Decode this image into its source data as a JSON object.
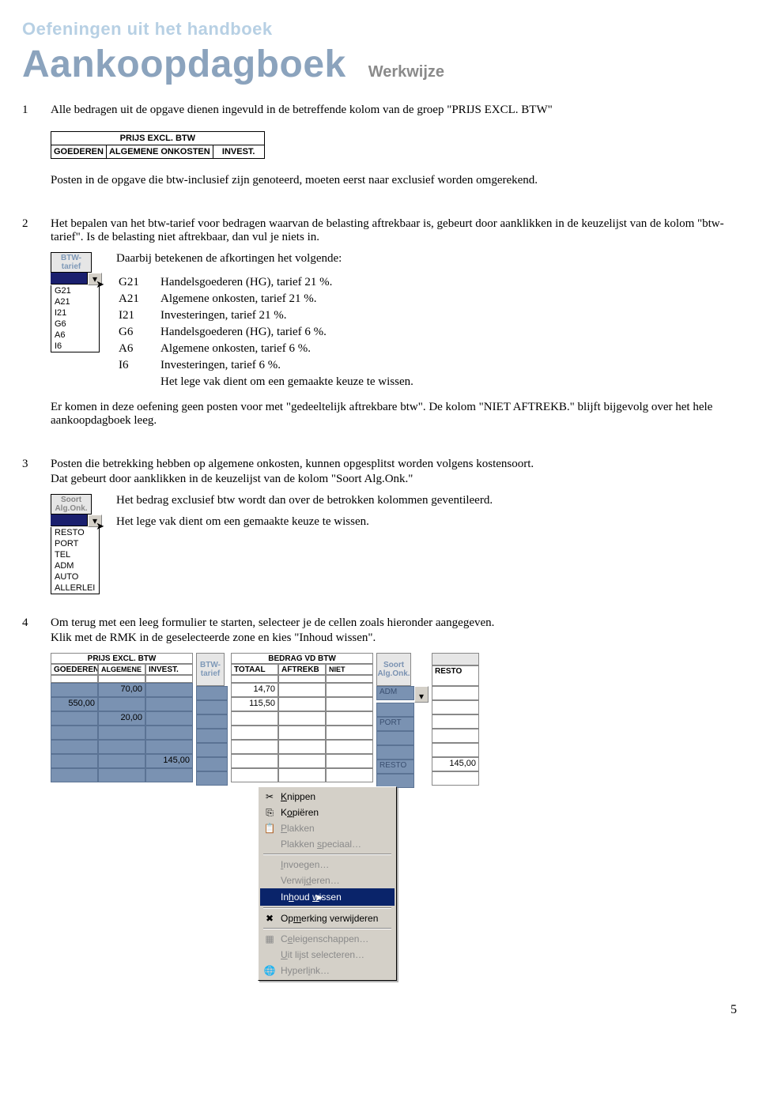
{
  "pre_title": "Oefeningen uit het handboek",
  "title": "Aankoopdagboek",
  "subtitle": "Werkwijze",
  "page_number": "5",
  "sec1": {
    "num": "1",
    "text": "Alle bedragen uit de opgave dienen ingevuld in de betreffende kolom van de groep \"PRIJS EXCL. BTW\"",
    "table_header": "PRIJS EXCL. BTW",
    "cols": [
      "GOEDEREN",
      "ALGEMENE ONKOSTEN",
      "INVEST."
    ],
    "follow": "Posten in de opgave die btw-inclusief zijn genoteerd, moeten eerst naar exclusief worden omgerekend."
  },
  "sec2": {
    "num": "2",
    "text": "Het bepalen van het btw-tarief voor bedragen waarvan de belasting aftrekbaar is, gebeurt door aanklikken in de keuzelijst van de kolom \"btw-tarief\". Is de belasting niet aftrekbaar, dan vul je niets in.",
    "dd_title": "BTW-tarief",
    "dd_items": [
      "G21",
      "A21",
      "I21",
      "G6",
      "A6",
      "I6"
    ],
    "def_intro": "Daarbij betekenen de afkortingen het volgende:",
    "defs": [
      {
        "code": "G21",
        "desc": "Handelsgoederen (HG), tarief  21 %."
      },
      {
        "code": "A21",
        "desc": "Algemene onkosten, tarief  21 %."
      },
      {
        "code": "I21",
        "desc": "Investeringen, tarief  21 %."
      },
      {
        "code": "G6",
        "desc": "Handelsgoederen (HG), tarief  6 %."
      },
      {
        "code": "A6",
        "desc": "Algemene onkosten, tarief  6 %."
      },
      {
        "code": "I6",
        "desc": "Investeringen, tarief  6 %."
      },
      {
        "code": "",
        "desc": "Het lege vak dient om een gemaakte keuze te wissen."
      }
    ],
    "follow": "Er komen in deze oefening geen posten voor met \"gedeeltelijk aftrekbare btw\". De kolom \"NIET AFTREKB.\" blijft bijgevolg over het hele aankoopdagboek leeg."
  },
  "sec3": {
    "num": "3",
    "line1": "Posten die betrekking hebben op algemene onkosten, kunnen opgesplitst worden volgens kostensoort.",
    "line2": "Dat gebeurt door aanklikken in de keuzelijst van de kolom \"Soort Alg.Onk.\"",
    "dd_title_l1": "Soort",
    "dd_title_l2": "Alg.Onk.",
    "dd_items": [
      "RESTO",
      "PORT",
      "TEL",
      "ADM",
      "AUTO",
      "ALLERLEI"
    ],
    "right1": "Het bedrag exclusief btw wordt dan over de betrokken kolommen geventileerd.",
    "right2": "Het lege vak dient om een gemaakte keuze te wissen."
  },
  "sec4": {
    "num": "4",
    "line1": "Om terug met een leeg formulier te starten, selecteer je de cellen zoals hieronder aangegeven.",
    "line2": "Klik met de RMK in de geselecteerde zone en kies \"Inhoud wissen\".",
    "btw_label": "BTW-tarief",
    "soort_l1": "Soort",
    "soort_l2": "Alg.Onk.",
    "group_prijs": "PRIJS EXCL. BTW",
    "group_bedrag": "BEDRAG VD BTW",
    "cols_prijs": [
      "GOEDEREN",
      "ALGEMENE ONKOSTEN",
      "INVEST."
    ],
    "cols_bedrag": [
      "TOTAAL",
      "AFTREKB",
      "NIET AFTREKB"
    ],
    "col_resto": "RESTO",
    "rows": [
      {
        "goed": "",
        "alg": "70,00",
        "inv": "",
        "tot": "14,70",
        "aft": "",
        "niet": "",
        "soort": "ADM",
        "resto": ""
      },
      {
        "goed": "550,00",
        "alg": "",
        "inv": "",
        "tot": "115,50",
        "aft": "",
        "niet": "",
        "soort": "",
        "resto": ""
      },
      {
        "goed": "",
        "alg": "20,00",
        "inv": "",
        "tot": "",
        "aft": "",
        "niet": "",
        "soort": "PORT",
        "resto": ""
      },
      {
        "goed": "",
        "alg": "",
        "inv": "",
        "tot": "",
        "aft": "",
        "niet": "",
        "soort": "",
        "resto": ""
      },
      {
        "goed": "",
        "alg": "",
        "inv": "",
        "tot": "",
        "aft": "",
        "niet": "",
        "soort": "",
        "resto": ""
      },
      {
        "goed": "",
        "alg": "",
        "inv": "145,00",
        "tot": "",
        "aft": "",
        "niet": "",
        "soort": "RESTO",
        "resto": "145,00"
      },
      {
        "goed": "",
        "alg": "",
        "inv": "",
        "tot": "",
        "aft": "",
        "niet": "",
        "soort": "",
        "resto": ""
      }
    ],
    "ctx": {
      "cut": "Knippen",
      "copy": "Kopiëren",
      "paste": "Plakken",
      "paste_special": "Plakken speciaal…",
      "insert": "Invoegen…",
      "delete": "Verwijderen…",
      "clear": "Inhoud wissen",
      "del_comment": "Opmerking verwijderen",
      "cell_props": "Celeigenschappen…",
      "pick_list": "Uit lijst selecteren…",
      "hyperlink": "Hyperlink…"
    }
  }
}
